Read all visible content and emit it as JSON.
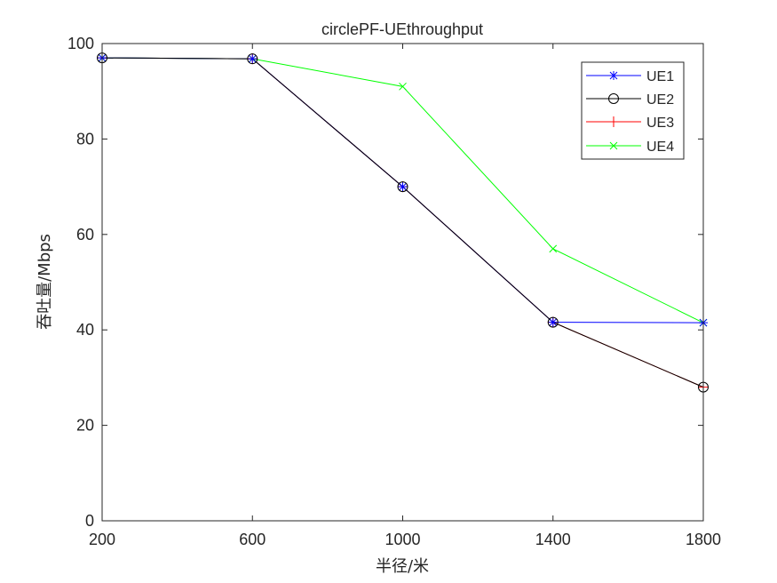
{
  "chart_data": {
    "type": "line",
    "title": "circlePF-UEthroughput",
    "xlabel": "半径/米",
    "ylabel": "吞吐量/Mbps",
    "x": [
      200,
      600,
      1000,
      1400,
      1800
    ],
    "xticks": [
      200,
      600,
      1000,
      1400,
      1800
    ],
    "xlim": [
      200,
      1800
    ],
    "yticks": [
      0,
      20,
      40,
      60,
      80,
      100
    ],
    "ylim": [
      0,
      100
    ],
    "grid": false,
    "legend_position": "top-right",
    "series": [
      {
        "name": "UE1",
        "values": [
          97,
          96.8,
          70,
          41.6,
          41.5
        ],
        "color": "#0000ff",
        "marker": "star"
      },
      {
        "name": "UE2",
        "values": [
          97,
          96.8,
          70,
          41.6,
          28
        ],
        "color": "#000000",
        "marker": "circle"
      },
      {
        "name": "UE3",
        "values": [
          97,
          96.8,
          70,
          41.6,
          28
        ],
        "color": "#ff0000",
        "marker": "plus"
      },
      {
        "name": "UE4",
        "values": [
          97,
          96.8,
          91,
          57,
          41.5
        ],
        "color": "#00ff00",
        "marker": "x"
      }
    ]
  }
}
